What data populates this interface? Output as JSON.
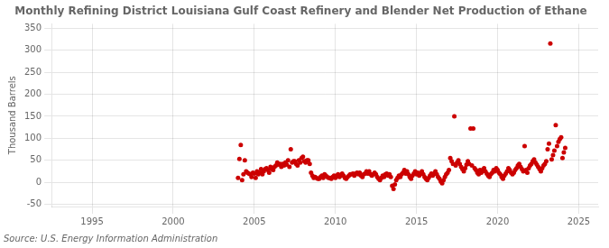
{
  "chart_data": {
    "type": "scatter",
    "title": "Monthly Refining District Louisiana Gulf Coast Refinery and Blender Net Production of Ethane",
    "ylabel": "Thousand Barrels",
    "source": "Source: U.S. Energy Information Administration",
    "color": "#cc0000",
    "grid": true,
    "xlim": [
      1992.5,
      2026.2
    ],
    "ylim": [
      -55,
      360
    ],
    "xticks": [
      1995,
      2000,
      2005,
      2010,
      2015,
      2020,
      2025
    ],
    "yticks": [
      -50,
      0,
      50,
      100,
      150,
      200,
      250,
      300,
      350
    ],
    "x": [
      2004.0,
      2004.083,
      2004.167,
      2004.25,
      2004.333,
      2004.417,
      2004.5,
      2004.583,
      2004.667,
      2004.75,
      2004.833,
      2004.917,
      2005.0,
      2005.083,
      2005.167,
      2005.25,
      2005.333,
      2005.417,
      2005.5,
      2005.583,
      2005.667,
      2005.75,
      2005.833,
      2005.917,
      2006.0,
      2006.083,
      2006.167,
      2006.25,
      2006.333,
      2006.417,
      2006.5,
      2006.583,
      2006.667,
      2006.75,
      2006.833,
      2006.917,
      2007.0,
      2007.083,
      2007.167,
      2007.25,
      2007.333,
      2007.417,
      2007.5,
      2007.583,
      2007.667,
      2007.75,
      2007.833,
      2007.917,
      2008.0,
      2008.083,
      2008.167,
      2008.25,
      2008.333,
      2008.417,
      2008.5,
      2008.583,
      2008.667,
      2008.75,
      2008.833,
      2008.917,
      2009.0,
      2009.083,
      2009.167,
      2009.25,
      2009.333,
      2009.417,
      2009.5,
      2009.583,
      2009.667,
      2009.75,
      2009.833,
      2009.917,
      2010.0,
      2010.083,
      2010.167,
      2010.25,
      2010.333,
      2010.417,
      2010.5,
      2010.583,
      2010.667,
      2010.75,
      2010.833,
      2010.917,
      2011.0,
      2011.083,
      2011.167,
      2011.25,
      2011.333,
      2011.417,
      2011.5,
      2011.583,
      2011.667,
      2011.75,
      2011.833,
      2011.917,
      2012.0,
      2012.083,
      2012.167,
      2012.25,
      2012.333,
      2012.417,
      2012.5,
      2012.583,
      2012.667,
      2012.75,
      2012.833,
      2012.917,
      2013.0,
      2013.083,
      2013.167,
      2013.25,
      2013.333,
      2013.417,
      2013.5,
      2013.583,
      2013.667,
      2013.75,
      2013.833,
      2013.917,
      2014.0,
      2014.083,
      2014.167,
      2014.25,
      2014.333,
      2014.417,
      2014.5,
      2014.583,
      2014.667,
      2014.75,
      2014.833,
      2014.917,
      2015.0,
      2015.083,
      2015.167,
      2015.25,
      2015.333,
      2015.417,
      2015.5,
      2015.583,
      2015.667,
      2015.75,
      2015.833,
      2015.917,
      2016.0,
      2016.083,
      2016.167,
      2016.25,
      2016.333,
      2016.417,
      2016.5,
      2016.583,
      2016.667,
      2016.75,
      2016.833,
      2016.917,
      2017.0,
      2017.083,
      2017.167,
      2017.25,
      2017.333,
      2017.417,
      2017.5,
      2017.583,
      2017.667,
      2017.75,
      2017.833,
      2017.917,
      2018.0,
      2018.083,
      2018.167,
      2018.25,
      2018.333,
      2018.417,
      2018.5,
      2018.583,
      2018.667,
      2018.75,
      2018.833,
      2018.917,
      2019.0,
      2019.083,
      2019.167,
      2019.25,
      2019.333,
      2019.417,
      2019.5,
      2019.583,
      2019.667,
      2019.75,
      2019.833,
      2019.917,
      2020.0,
      2020.083,
      2020.167,
      2020.25,
      2020.333,
      2020.417,
      2020.5,
      2020.583,
      2020.667,
      2020.75,
      2020.833,
      2020.917,
      2021.0,
      2021.083,
      2021.167,
      2021.25,
      2021.333,
      2021.417,
      2021.5,
      2021.583,
      2021.667,
      2021.75,
      2021.833,
      2021.917,
      2022.0,
      2022.083,
      2022.167,
      2022.25,
      2022.333,
      2022.417,
      2022.5,
      2022.583,
      2022.667,
      2022.75,
      2022.833,
      2022.917,
      2023.0,
      2023.083,
      2023.167,
      2023.25,
      2023.333,
      2023.417,
      2023.5,
      2023.583,
      2023.667,
      2023.75,
      2023.833,
      2023.917,
      2024.0,
      2024.083,
      2024.167
    ],
    "values": [
      10,
      53,
      85,
      5,
      18,
      50,
      25,
      22,
      20,
      18,
      12,
      22,
      20,
      10,
      25,
      18,
      22,
      30,
      18,
      25,
      30,
      32,
      28,
      22,
      35,
      30,
      28,
      35,
      38,
      45,
      40,
      42,
      35,
      42,
      38,
      45,
      40,
      50,
      35,
      75,
      45,
      48,
      48,
      42,
      38,
      50,
      45,
      55,
      58,
      48,
      45,
      50,
      50,
      42,
      22,
      15,
      10,
      12,
      10,
      8,
      8,
      12,
      15,
      10,
      18,
      15,
      12,
      10,
      10,
      8,
      12,
      15,
      10,
      15,
      18,
      12,
      15,
      20,
      15,
      10,
      8,
      12,
      15,
      18,
      18,
      20,
      15,
      20,
      22,
      18,
      22,
      15,
      12,
      18,
      20,
      25,
      20,
      25,
      18,
      15,
      18,
      22,
      18,
      12,
      8,
      5,
      10,
      15,
      12,
      18,
      20,
      15,
      18,
      12,
      -8,
      -15,
      -5,
      5,
      10,
      15,
      12,
      18,
      22,
      28,
      20,
      25,
      18,
      12,
      8,
      15,
      20,
      25,
      18,
      22,
      15,
      20,
      25,
      18,
      12,
      8,
      5,
      10,
      15,
      20,
      15,
      20,
      25,
      18,
      12,
      8,
      2,
      -2,
      5,
      12,
      18,
      22,
      28,
      55,
      48,
      42,
      150,
      38,
      45,
      50,
      42,
      35,
      30,
      25,
      32,
      40,
      48,
      42,
      122,
      38,
      122,
      32,
      28,
      22,
      18,
      28,
      22,
      28,
      32,
      25,
      20,
      15,
      12,
      18,
      22,
      28,
      25,
      32,
      28,
      22,
      18,
      12,
      8,
      15,
      20,
      25,
      32,
      28,
      22,
      18,
      22,
      28,
      32,
      38,
      42,
      35,
      30,
      25,
      82,
      28,
      22,
      32,
      38,
      42,
      48,
      52,
      45,
      40,
      35,
      30,
      25,
      32,
      38,
      42,
      48,
      75,
      88,
      315,
      52,
      62,
      72,
      130,
      82,
      92,
      98,
      102,
      55,
      68,
      78
    ]
  }
}
